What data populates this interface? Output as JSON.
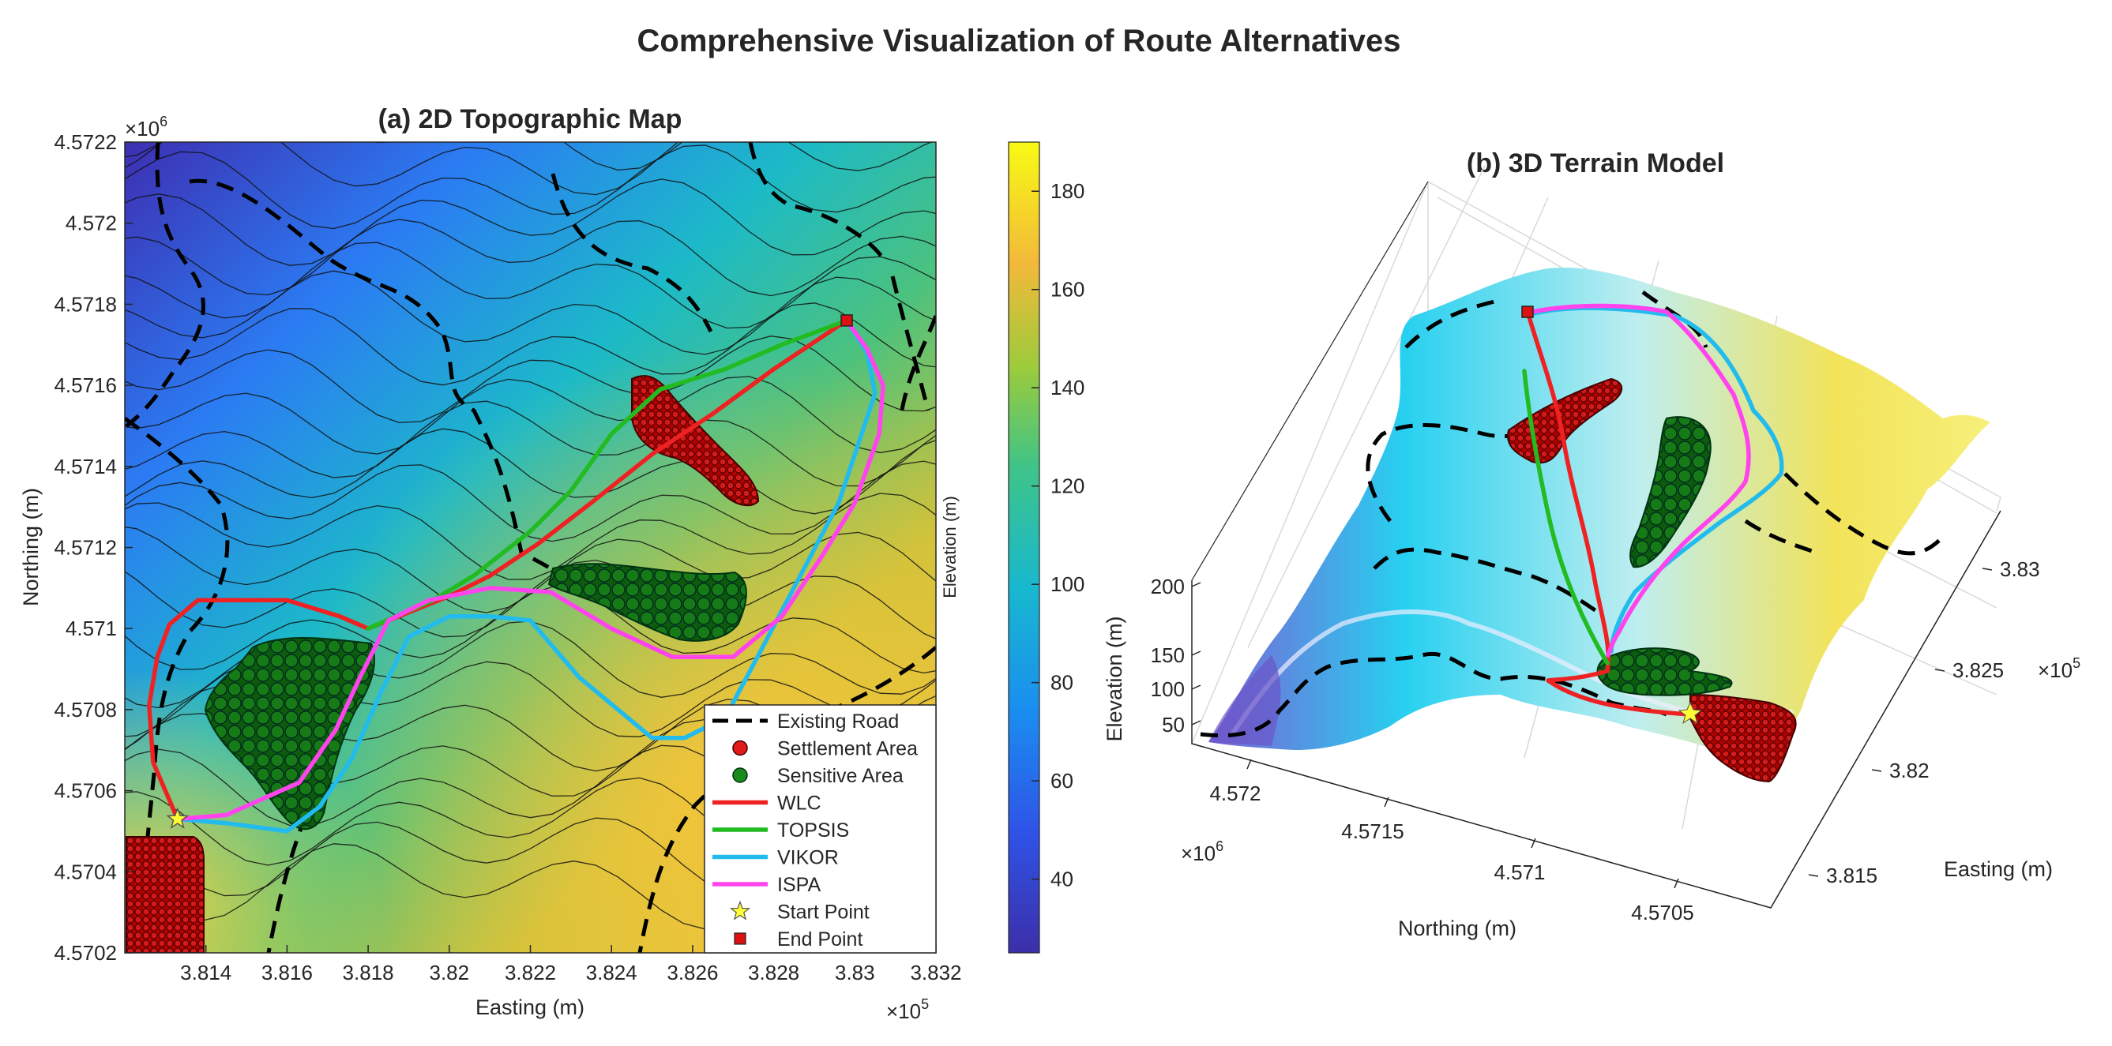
{
  "figure_title": "Comprehensive Visualization of Route Alternatives",
  "colors": {
    "WLC": "#ee2222",
    "TOPSIS": "#22bb22",
    "VIKOR": "#22bbee",
    "ISPA": "#ff44ee",
    "settlement": "#b30000",
    "sensitive": "#0e6a0e",
    "road": "#000000",
    "start": "#ffff33",
    "end": "#dd1111"
  },
  "chart_data": [
    {
      "type": "line",
      "title": "(a) 2D Topographic Map",
      "xlabel": "Easting (m)",
      "ylabel": "Northing (m)",
      "x_multiplier": "×10^5",
      "y_multiplier": "×10^6",
      "xlim": [
        3.812,
        3.832
      ],
      "ylim": [
        4.5702,
        4.5722
      ],
      "x_ticks": [
        "3.814",
        "3.816",
        "3.818",
        "3.82",
        "3.822",
        "3.824",
        "3.826",
        "3.828",
        "3.83",
        "3.832"
      ],
      "y_ticks": [
        "4.5702",
        "4.5704",
        "4.5706",
        "4.5708",
        "4.571",
        "4.5712",
        "4.5714",
        "4.5716",
        "4.5718",
        "4.572",
        "4.5722"
      ],
      "colorbar": {
        "label": "Elevation (m)",
        "ticks": [
          "40",
          "60",
          "80",
          "100",
          "120",
          "140",
          "160",
          "180"
        ],
        "range": [
          25,
          190
        ]
      },
      "legend_position": "bottom-right",
      "legend": [
        "Existing Road",
        "Settlement Area",
        "Sensitive Area",
        "WLC",
        "TOPSIS",
        "VIKOR",
        "ISPA",
        "Start Point",
        "End Point"
      ],
      "start_point": [
        3.8133,
        4.57053
      ],
      "end_point": [
        3.8298,
        4.57176
      ],
      "series": [
        {
          "name": "WLC",
          "x": [
            3.8133,
            3.8127,
            3.8126,
            3.8128,
            3.8131,
            3.8138,
            3.8143,
            3.8153,
            3.816,
            3.8173,
            3.818,
            3.819,
            3.82,
            3.821,
            3.8222,
            3.8235,
            3.825,
            3.8265,
            3.828,
            3.8298
          ],
          "y": [
            4.57053,
            4.57067,
            4.57081,
            4.57093,
            4.57101,
            4.57107,
            4.57107,
            4.57107,
            4.57107,
            4.57103,
            4.571,
            4.57104,
            4.57108,
            4.57113,
            4.57121,
            4.57131,
            4.57143,
            4.57153,
            4.57164,
            4.57176
          ]
        },
        {
          "name": "TOPSIS",
          "x": [
            3.818,
            3.8196,
            3.8206,
            3.822,
            3.823,
            3.824,
            3.8252,
            3.8268,
            3.8282,
            3.8298
          ],
          "y": [
            4.571,
            4.57107,
            4.57113,
            4.57124,
            4.57134,
            4.57148,
            4.57159,
            4.57164,
            4.5717,
            4.57176
          ]
        },
        {
          "name": "VIKOR",
          "x": [
            3.8133,
            3.8145,
            3.816,
            3.8168,
            3.8176,
            3.8183,
            3.819,
            3.82,
            3.821,
            3.822,
            3.8232,
            3.825,
            3.8258,
            3.8268,
            3.8276,
            3.8286,
            3.8296,
            3.8305,
            3.8303,
            3.8298
          ],
          "y": [
            4.57053,
            4.57052,
            4.5705,
            4.57056,
            4.57068,
            4.57084,
            4.57098,
            4.57103,
            4.57103,
            4.57102,
            4.57088,
            4.57073,
            4.57073,
            4.57078,
            4.57093,
            4.57112,
            4.57131,
            4.57158,
            4.57168,
            4.57176
          ]
        },
        {
          "name": "ISPA",
          "x": [
            3.8133,
            3.8145,
            3.8163,
            3.8172,
            3.8178,
            3.8185,
            3.8195,
            3.821,
            3.8225,
            3.824,
            3.8255,
            3.827,
            3.8282,
            3.8292,
            3.83,
            3.8306,
            3.8307,
            3.8303,
            3.8298
          ],
          "y": [
            4.57053,
            4.57054,
            4.57062,
            4.57075,
            4.57088,
            4.57102,
            4.57107,
            4.5711,
            4.57109,
            4.571,
            4.57093,
            4.57093,
            4.57103,
            4.57118,
            4.57131,
            4.57148,
            4.5716,
            4.57169,
            4.57176
          ]
        }
      ]
    },
    {
      "type": "scatter",
      "title": "(b) 3D Terrain Model",
      "zlabel": "Elevation (m)",
      "northing_label": "Northing (m)",
      "easting_label": "Easting (m)",
      "z_ticks": [
        "50",
        "100",
        "150",
        "200"
      ],
      "northing_ticks": [
        "4.572",
        "4.5715",
        "4.571",
        "4.5705"
      ],
      "northing_multiplier": "×10^6",
      "easting_ticks": [
        "3.815",
        "3.82",
        "3.825",
        "3.83"
      ],
      "easting_multiplier": "×10^5"
    }
  ]
}
